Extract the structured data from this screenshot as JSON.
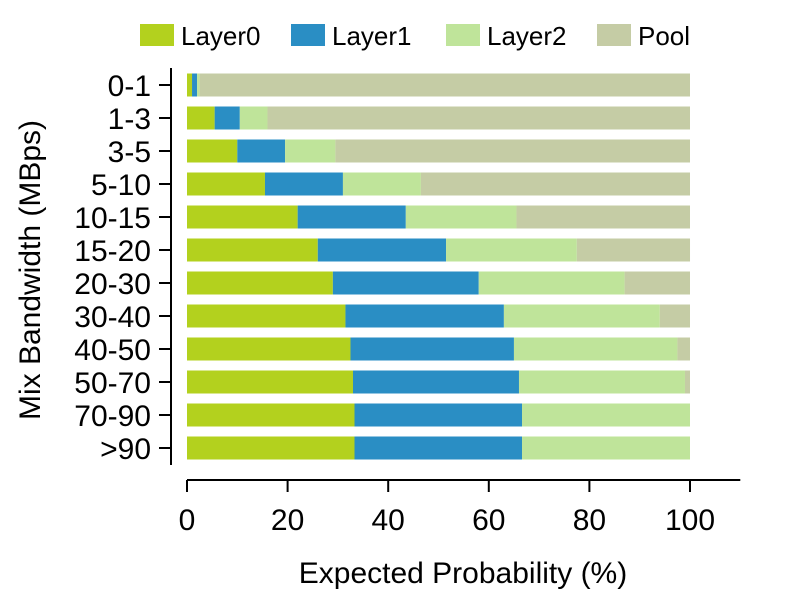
{
  "chart_data": {
    "type": "bar",
    "orientation": "horizontal",
    "stacked": true,
    "title": "",
    "xlabel": "Expected Probability (%)",
    "ylabel": "Mix Bandwidth (MBps)",
    "xlim": [
      0,
      110
    ],
    "xticks": [
      0,
      20,
      40,
      60,
      80,
      100
    ],
    "legend_position": "top",
    "categories": [
      "0-1",
      "1-3",
      "3-5",
      "5-10",
      "10-15",
      "15-20",
      "20-30",
      "30-40",
      "40-50",
      "50-70",
      "70-90",
      ">90"
    ],
    "series": [
      {
        "name": "Layer0",
        "color": "#b3d11e",
        "values": [
          1.0,
          5.5,
          10.0,
          15.5,
          22.0,
          26.0,
          29.0,
          31.5,
          32.5,
          33.0,
          33.3,
          33.3
        ]
      },
      {
        "name": "Layer1",
        "color": "#2a8ec4",
        "values": [
          1.0,
          5.0,
          9.5,
          15.5,
          21.5,
          25.5,
          29.0,
          31.5,
          32.5,
          33.0,
          33.3,
          33.3
        ]
      },
      {
        "name": "Layer2",
        "color": "#bfe49a",
        "values": [
          0.5,
          5.5,
          10.0,
          15.5,
          22.0,
          26.0,
          29.0,
          31.0,
          32.5,
          33.0,
          33.4,
          33.4
        ]
      },
      {
        "name": "Pool",
        "color": "#c5cca5",
        "values": [
          97.5,
          84.0,
          70.5,
          53.5,
          34.5,
          22.5,
          13.0,
          6.0,
          2.5,
          1.0,
          0.0,
          0.0
        ]
      }
    ]
  }
}
